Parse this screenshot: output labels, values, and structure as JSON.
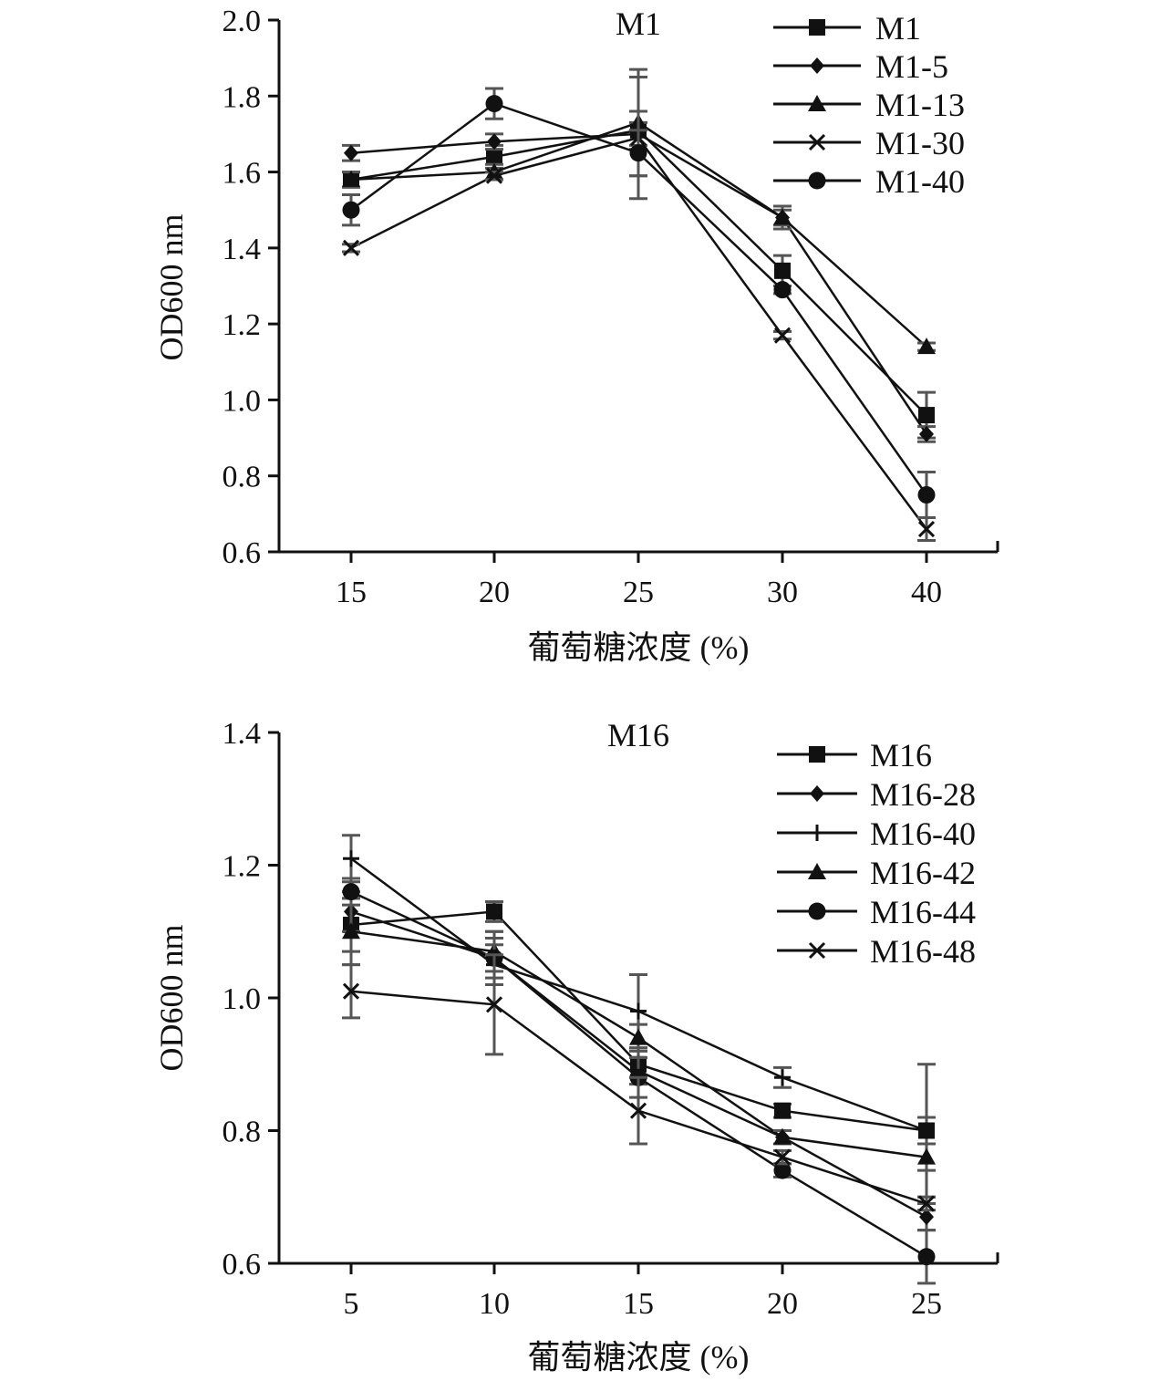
{
  "chart_data": [
    {
      "type": "line",
      "title": "M1",
      "xlabel": "葡萄糖浓度 (%)",
      "ylabel": "OD600 nm",
      "categories": [
        "15",
        "20",
        "25",
        "30",
        "40"
      ],
      "ylim": [
        0.6,
        2.0
      ],
      "yticks": [
        "0.6",
        "0.8",
        "1.0",
        "1.2",
        "1.4",
        "1.6",
        "1.8",
        "2.0"
      ],
      "grid": false,
      "legend_position": "top-right",
      "series": [
        {
          "name": "M1",
          "marker": "square",
          "values": [
            1.58,
            1.64,
            1.71,
            1.34,
            0.96
          ],
          "errors": [
            0.02,
            0.03,
            0.05,
            0.04,
            0.06
          ]
        },
        {
          "name": "M1-5",
          "marker": "diamond",
          "values": [
            1.65,
            1.68,
            1.7,
            1.48,
            0.91
          ],
          "errors": [
            0.02,
            0.02,
            0.03,
            0.02,
            0.02
          ]
        },
        {
          "name": "M1-13",
          "marker": "triangle",
          "values": [
            1.58,
            1.6,
            1.73,
            1.48,
            1.14
          ],
          "errors": [
            0.02,
            0.02,
            0.14,
            0.03,
            0.01
          ]
        },
        {
          "name": "M1-30",
          "marker": "x",
          "values": [
            1.4,
            1.59,
            1.69,
            1.17,
            0.66
          ],
          "errors": [
            0.01,
            0.01,
            0.16,
            0.01,
            0.03
          ]
        },
        {
          "name": "M1-40",
          "marker": "circle",
          "values": [
            1.5,
            1.78,
            1.65,
            1.29,
            0.75
          ],
          "errors": [
            0.04,
            0.04,
            0.06,
            0.01,
            0.06
          ]
        }
      ]
    },
    {
      "type": "line",
      "title": "M16",
      "xlabel": "葡萄糖浓度 (%)",
      "ylabel": "OD600 nm",
      "categories": [
        "5",
        "10",
        "15",
        "20",
        "25"
      ],
      "ylim": [
        0.6,
        1.4
      ],
      "yticks": [
        "0.6",
        "0.8",
        "1.0",
        "1.2",
        "1.4"
      ],
      "grid": false,
      "legend_position": "top-right",
      "series": [
        {
          "name": "M16",
          "marker": "square",
          "values": [
            1.11,
            1.13,
            0.9,
            0.83,
            0.8
          ],
          "errors": [
            0.04,
            0.015,
            0.02,
            0.01,
            0.1
          ]
        },
        {
          "name": "M16-28",
          "marker": "diamond",
          "values": [
            1.13,
            1.06,
            0.89,
            0.79,
            0.67
          ],
          "errors": [
            0.03,
            0.03,
            0.02,
            0.01,
            0.02
          ]
        },
        {
          "name": "M16-40",
          "marker": "plus",
          "values": [
            1.21,
            1.05,
            0.98,
            0.88,
            0.8
          ],
          "errors": [
            0.035,
            0.03,
            0.055,
            0.015,
            0.02
          ]
        },
        {
          "name": "M16-42",
          "marker": "triangle",
          "values": [
            1.1,
            1.07,
            0.94,
            0.79,
            0.76
          ],
          "errors": [
            0.05,
            0.03,
            0.02,
            0.01,
            0.02
          ]
        },
        {
          "name": "M16-44",
          "marker": "circle",
          "values": [
            1.16,
            1.06,
            0.88,
            0.74,
            0.61
          ],
          "errors": [
            0.02,
            0.04,
            0.03,
            0.01,
            0.04
          ]
        },
        {
          "name": "M16-48",
          "marker": "x",
          "values": [
            1.01,
            0.99,
            0.83,
            0.76,
            0.69
          ],
          "errors": [
            0.04,
            0.075,
            0.05,
            0.01,
            0.01
          ]
        }
      ]
    }
  ]
}
